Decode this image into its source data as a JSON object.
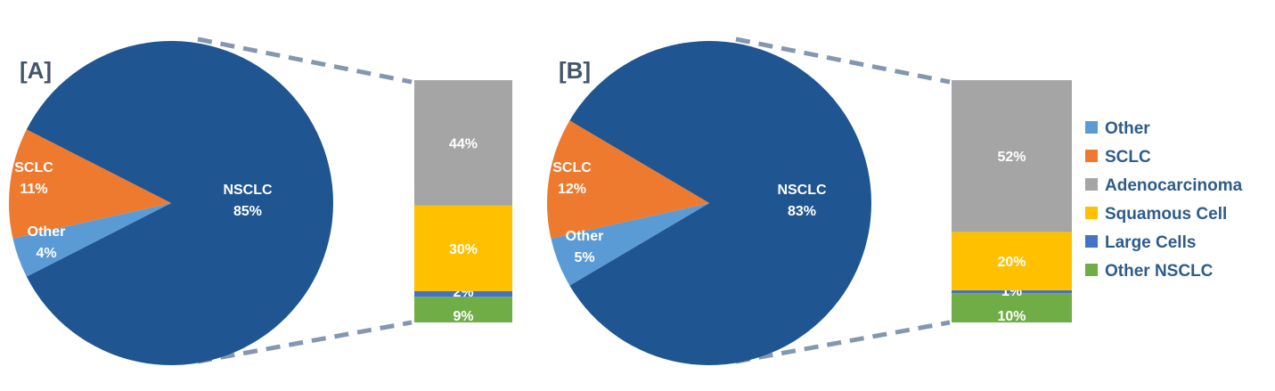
{
  "chart_data": [
    {
      "type": "pie",
      "panel_label": "[A]",
      "slices": [
        {
          "name": "NSCLC",
          "value": 85,
          "label": "NSCLC",
          "value_label": "85%",
          "color": "#1F5591"
        },
        {
          "name": "SCLC",
          "value": 11,
          "label": "SCLC",
          "value_label": "11%",
          "color": "#EE7A30"
        },
        {
          "name": "Other",
          "value": 4,
          "label": "Other",
          "value_label": "4%",
          "color": "#5B9BD5"
        }
      ],
      "breakdown_of": "NSCLC",
      "breakdown": [
        {
          "name": "Other NSCLC",
          "value": 9,
          "value_label": "9%",
          "color": "#70AD47"
        },
        {
          "name": "Large Cells",
          "value": 2,
          "value_label": "2%",
          "color": "#4472C4"
        },
        {
          "name": "Squamous Cell",
          "value": 30,
          "value_label": "30%",
          "color": "#FFC000"
        },
        {
          "name": "Adenocarcinoma",
          "value": 44,
          "value_label": "44%",
          "color": "#A5A5A5"
        }
      ]
    },
    {
      "type": "pie",
      "panel_label": "[B]",
      "slices": [
        {
          "name": "NSCLC",
          "value": 83,
          "label": "NSCLC",
          "value_label": "83%",
          "color": "#1F5591"
        },
        {
          "name": "SCLC",
          "value": 12,
          "label": "SCLC",
          "value_label": "12%",
          "color": "#EE7A30"
        },
        {
          "name": "Other",
          "value": 5,
          "label": "Other",
          "value_label": "5%",
          "color": "#5B9BD5"
        }
      ],
      "breakdown_of": "NSCLC",
      "breakdown": [
        {
          "name": "Other NSCLC",
          "value": 10,
          "value_label": "10%",
          "color": "#70AD47"
        },
        {
          "name": "Large Cells",
          "value": 1,
          "value_label": "1%",
          "color": "#4472C4"
        },
        {
          "name": "Squamous Cell",
          "value": 20,
          "value_label": "20%",
          "color": "#FFC000"
        },
        {
          "name": "Adenocarcinoma",
          "value": 52,
          "value_label": "52%",
          "color": "#A5A5A5"
        }
      ]
    }
  ],
  "legend": {
    "placement": "right",
    "items": [
      {
        "label": "Other",
        "color": "#5B9BD5"
      },
      {
        "label": "SCLC",
        "color": "#EE7A30"
      },
      {
        "label": "Adenocarcinoma",
        "color": "#A5A5A5"
      },
      {
        "label": "Squamous Cell",
        "color": "#FFC000"
      },
      {
        "label": "Large Cells",
        "color": "#4472C4"
      },
      {
        "label": "Other NSCLC",
        "color": "#70AD47"
      }
    ]
  },
  "colors": {
    "connector": "#8497B0",
    "panel_label": "#44546A",
    "legend_text": "#2E5C8A"
  }
}
